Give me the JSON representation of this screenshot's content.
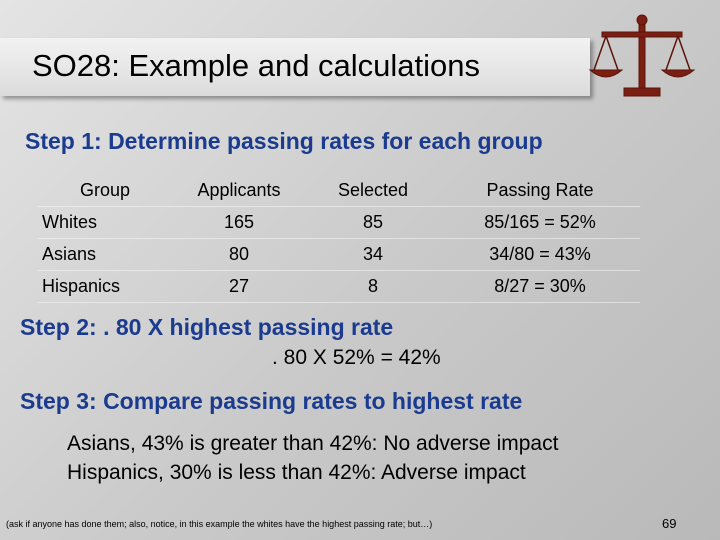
{
  "header": {
    "title": "SO28: Example and calculations"
  },
  "step1": {
    "heading": "Step 1: Determine passing rates for each group",
    "table": {
      "columns": [
        "Group",
        "Applicants",
        "Selected",
        "Passing Rate"
      ],
      "rows": [
        [
          "Whites",
          "165",
          "85",
          "85/165 = 52%"
        ],
        [
          "Asians",
          "80",
          "34",
          "34/80 = 43%"
        ],
        [
          "Hispanics",
          "27",
          "8",
          "8/27 = 30%"
        ]
      ]
    }
  },
  "step2": {
    "heading": "Step 2: . 80 X highest passing rate",
    "calculation": ". 80 X 52% = 42%"
  },
  "step3": {
    "heading": "Step 3: Compare passing rates to highest rate",
    "lines": [
      "Asians, 43% is greater than 42%:  No adverse impact",
      "Hispanics, 30% is less than 42%:   Adverse impact"
    ]
  },
  "footer": {
    "note": "(ask if anyone has done them; also, notice, in this example the whites have the highest passing rate; but…)",
    "page_number": "69"
  }
}
